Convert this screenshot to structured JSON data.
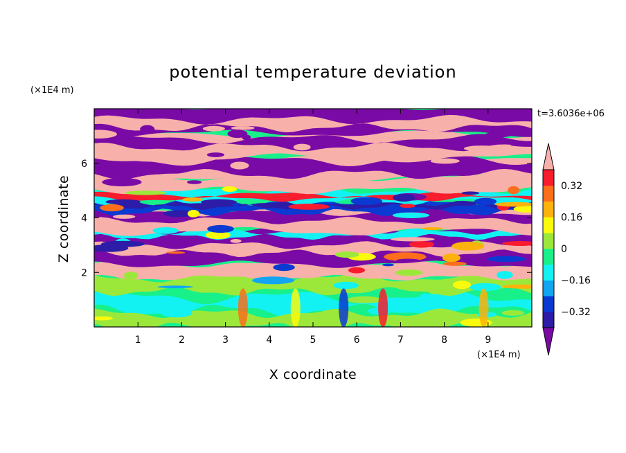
{
  "chart_data": {
    "type": "heatmap",
    "title": "potential temperature deviation",
    "xlabel": "X coordinate",
    "ylabel": "Z coordinate",
    "x_unit": "(×1E4 m)",
    "y_unit": "(×1E4 m)",
    "time_label": "t=3.6036e+06",
    "xlim": [
      0,
      10
    ],
    "ylim": [
      0,
      8
    ],
    "x_ticks": [
      "1",
      "2",
      "3",
      "4",
      "5",
      "6",
      "7",
      "8",
      "9"
    ],
    "y_ticks": [
      "2",
      "4",
      "6"
    ],
    "colorbar": {
      "levels": [
        -0.4,
        -0.32,
        -0.24,
        -0.16,
        -0.08,
        0,
        0.08,
        0.16,
        0.24,
        0.32,
        0.4
      ],
      "labels": [
        "0.32",
        "0.16",
        "0",
        "−0.16",
        "−0.32"
      ],
      "label_values": [
        0.32,
        0.16,
        0,
        -0.16,
        -0.32
      ],
      "colors": [
        "#7a0aa6",
        "#2c1ca8",
        "#0a3ad2",
        "#12a6f2",
        "#12f2f2",
        "#18f08a",
        "#9ce83a",
        "#fafa0c",
        "#fcb20c",
        "#fc6e1c",
        "#f81c2e",
        "#f8b0aa"
      ],
      "extend": "both"
    },
    "bands": [
      {
        "z_range": [
          7.0,
          8.0
        ],
        "dominant": "below -0.40",
        "secondary": "above 0.40"
      },
      {
        "z_range": [
          5.5,
          7.0
        ],
        "dominant": "above 0.40",
        "secondary": "below -0.40"
      },
      {
        "z_range": [
          3.5,
          5.5
        ],
        "dominant": "mixed -0.40 to 0.40",
        "secondary": "above 0.40"
      },
      {
        "z_range": [
          2.0,
          3.5
        ],
        "dominant": "below -0.40",
        "secondary": "above 0.40"
      },
      {
        "z_range": [
          0.0,
          2.0
        ],
        "dominant": "-0.16 to 0.16",
        "secondary": "0.16 to 0.40"
      }
    ]
  }
}
